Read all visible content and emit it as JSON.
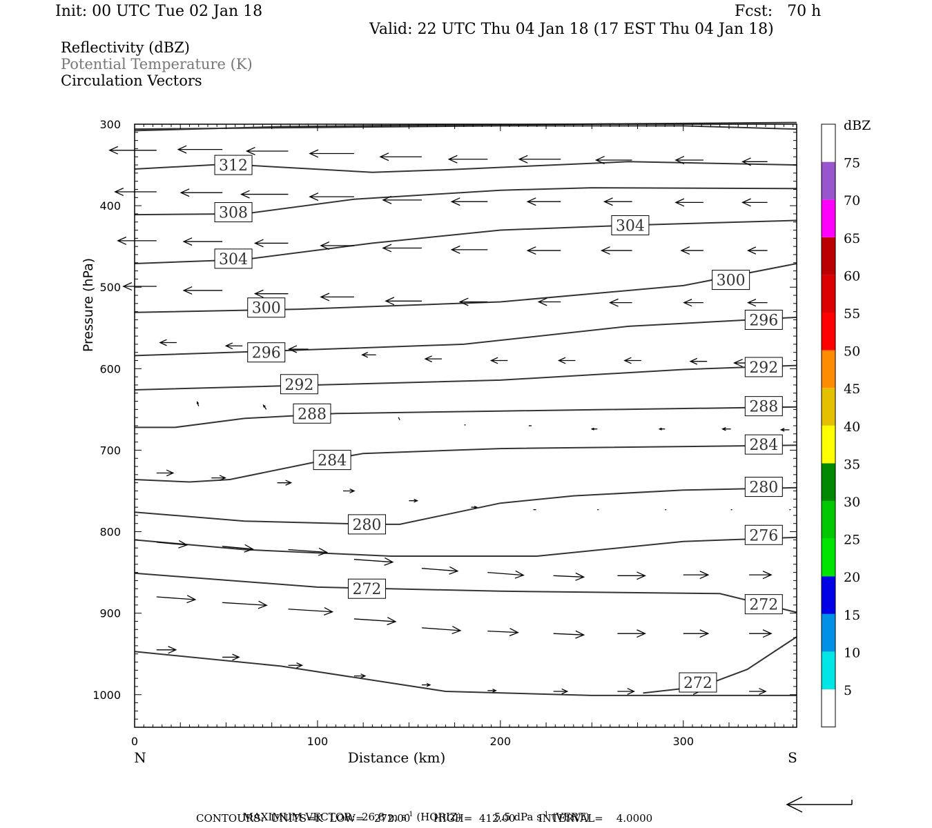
{
  "header": {
    "init": "Init: 00 UTC Tue 02 Jan 18",
    "fcst": "Fcst:   70 h",
    "valid": "Valid: 22 UTC Thu 04 Jan 18 (17 EST Thu 04 Jan 18)"
  },
  "legend_lines": {
    "reflectivity": "Reflectivity (dBZ)",
    "theta": "Potential Temperature (K)",
    "vectors": "Circulation Vectors"
  },
  "footer": {
    "maxvec_label": "MAXIMUM VECTOR:",
    "maxvec_horiz": "26.8 m s",
    "maxvec_horiz_exp": "-1",
    "maxvec_horiz_tag": "(HORIZ)",
    "maxvec_vert": "5.5 dPa s",
    "maxvec_vert_exp": "-1",
    "maxvec_vert_tag": "(VERT)",
    "contours": "CONTOURS:  UNITS=K  LOW=   272.00       HIGH=  412.00       INTERVAL=    4.0000"
  },
  "colorbar": {
    "title": "dBZ",
    "labels": [
      "5",
      "10",
      "15",
      "20",
      "25",
      "30",
      "35",
      "40",
      "45",
      "50",
      "55",
      "60",
      "65",
      "70",
      "75"
    ],
    "colors": [
      "#ffffff",
      "#00e5e5",
      "#0090e5",
      "#0000e5",
      "#00e500",
      "#00c800",
      "#008800",
      "#ffff00",
      "#e5c000",
      "#ff8c00",
      "#ff0000",
      "#dd0000",
      "#bb0000",
      "#ff00ff",
      "#9955cc",
      "#ffffff"
    ]
  },
  "chart_data": {
    "type": "contour",
    "xlabel": "Distance (km)",
    "ylabel": "Pressure (hPa)",
    "xlim": [
      0,
      362
    ],
    "ylim": [
      300,
      1040
    ],
    "y_inverted": true,
    "xticks": [
      0,
      100,
      200,
      300
    ],
    "xtick_labels": [
      "0",
      "100",
      "200",
      "300"
    ],
    "yticks": [
      300,
      400,
      500,
      600,
      700,
      800,
      900,
      1000
    ],
    "ytick_labels": [
      "300",
      "400",
      "500",
      "600",
      "700",
      "800",
      "900",
      "1000"
    ],
    "end_labels": {
      "left": "N",
      "right": "S"
    },
    "theta_contours": [
      {
        "points": [
          [
            0,
            306
          ],
          [
            100,
            304
          ],
          [
            200,
            302
          ],
          [
            300,
            302
          ],
          [
            362,
            306
          ]
        ]
      },
      {
        "points": [
          [
            0,
            308
          ],
          [
            80,
            303
          ],
          [
            170,
            301
          ],
          [
            240,
            300
          ],
          [
            362,
            298
          ]
        ]
      },
      {
        "points": [
          [
            0,
            355
          ],
          [
            50,
            349
          ],
          [
            130,
            359
          ],
          [
            170,
            356
          ],
          [
            270,
            346
          ],
          [
            362,
            350
          ]
        ]
      },
      {
        "points": [
          [
            0,
            411
          ],
          [
            60,
            410
          ],
          [
            120,
            392
          ],
          [
            200,
            381
          ],
          [
            250,
            378
          ],
          [
            362,
            379
          ]
        ]
      },
      {
        "points": [
          [
            0,
            471
          ],
          [
            60,
            466
          ],
          [
            130,
            446
          ],
          [
            200,
            430
          ],
          [
            270,
            424
          ],
          [
            362,
            418
          ]
        ]
      },
      {
        "points": [
          [
            0,
            531
          ],
          [
            90,
            527
          ],
          [
            200,
            518
          ],
          [
            300,
            498
          ],
          [
            362,
            471
          ]
        ]
      },
      {
        "points": [
          [
            0,
            584
          ],
          [
            80,
            578
          ],
          [
            180,
            570
          ],
          [
            270,
            548
          ],
          [
            362,
            537
          ]
        ]
      },
      {
        "points": [
          [
            0,
            626
          ],
          [
            100,
            620
          ],
          [
            200,
            614
          ],
          [
            300,
            601
          ],
          [
            362,
            596
          ]
        ]
      },
      {
        "points": [
          [
            0,
            672
          ],
          [
            22,
            672
          ],
          [
            60,
            661
          ],
          [
            110,
            655
          ],
          [
            200,
            652
          ],
          [
            362,
            647
          ]
        ]
      },
      {
        "points": [
          [
            0,
            736
          ],
          [
            30,
            739
          ],
          [
            52,
            736
          ],
          [
            100,
            714
          ],
          [
            125,
            704
          ],
          [
            200,
            698
          ],
          [
            362,
            694
          ]
        ]
      },
      {
        "points": [
          [
            0,
            776
          ],
          [
            60,
            787
          ],
          [
            130,
            791
          ],
          [
            145,
            791
          ],
          [
            200,
            765
          ],
          [
            240,
            756
          ],
          [
            300,
            749
          ],
          [
            362,
            746
          ]
        ]
      },
      {
        "points": [
          [
            0,
            810
          ],
          [
            60,
            822
          ],
          [
            140,
            830
          ],
          [
            220,
            830
          ],
          [
            300,
            812
          ],
          [
            362,
            807
          ]
        ]
      },
      {
        "points": [
          [
            0,
            851
          ],
          [
            100,
            868
          ],
          [
            200,
            873
          ],
          [
            320,
            876
          ],
          [
            362,
            899
          ]
        ]
      },
      {
        "points": [
          [
            0,
            947
          ],
          [
            80,
            965
          ],
          [
            170,
            996
          ],
          [
            250,
            1001
          ],
          [
            362,
            1001
          ]
        ]
      },
      {
        "points": [
          [
            278,
            998
          ],
          [
            310,
            990
          ],
          [
            335,
            969
          ],
          [
            362,
            929
          ]
        ]
      }
    ],
    "theta_labels": [
      {
        "text": "312",
        "x": 54,
        "p": 350
      },
      {
        "text": "308",
        "x": 54,
        "p": 408
      },
      {
        "text": "304",
        "x": 54,
        "p": 465
      },
      {
        "text": "304",
        "x": 271,
        "p": 424
      },
      {
        "text": "300",
        "x": 72,
        "p": 525
      },
      {
        "text": "300",
        "x": 326,
        "p": 491
      },
      {
        "text": "296",
        "x": 72,
        "p": 580
      },
      {
        "text": "296",
        "x": 344,
        "p": 540
      },
      {
        "text": "292",
        "x": 90,
        "p": 619
      },
      {
        "text": "292",
        "x": 344,
        "p": 598
      },
      {
        "text": "288",
        "x": 97,
        "p": 655
      },
      {
        "text": "288",
        "x": 344,
        "p": 646
      },
      {
        "text": "284",
        "x": 108,
        "p": 712
      },
      {
        "text": "284",
        "x": 344,
        "p": 693
      },
      {
        "text": "280",
        "x": 127,
        "p": 791
      },
      {
        "text": "280",
        "x": 344,
        "p": 745
      },
      {
        "text": "276",
        "x": 344,
        "p": 804
      },
      {
        "text": "272",
        "x": 127,
        "p": 870
      },
      {
        "text": "272",
        "x": 344,
        "p": 889
      },
      {
        "text": "272",
        "x": 308,
        "p": 985
      }
    ],
    "vectors": [
      {
        "x": 12,
        "p": 332,
        "u": -34
      },
      {
        "x": 48,
        "p": 331,
        "u": -32
      },
      {
        "x": 84,
        "p": 333,
        "u": -30
      },
      {
        "x": 120,
        "p": 336,
        "u": -32
      },
      {
        "x": 157,
        "p": 340,
        "u": -30
      },
      {
        "x": 193,
        "p": 343,
        "u": -28
      },
      {
        "x": 233,
        "p": 343,
        "u": -30
      },
      {
        "x": 272,
        "p": 344,
        "u": -26
      },
      {
        "x": 311,
        "p": 344,
        "u": -20
      },
      {
        "x": 346,
        "p": 346,
        "u": -18
      },
      {
        "x": 12,
        "p": 383,
        "u": -30
      },
      {
        "x": 48,
        "p": 384,
        "u": -30
      },
      {
        "x": 84,
        "p": 386,
        "u": -34
      },
      {
        "x": 120,
        "p": 389,
        "u": -32
      },
      {
        "x": 157,
        "p": 393,
        "u": -28
      },
      {
        "x": 193,
        "p": 395,
        "u": -26
      },
      {
        "x": 233,
        "p": 395,
        "u": -24
      },
      {
        "x": 272,
        "p": 395,
        "u": -20
      },
      {
        "x": 311,
        "p": 396,
        "u": -20
      },
      {
        "x": 346,
        "p": 396,
        "u": -18
      },
      {
        "x": 12,
        "p": 443,
        "u": -28
      },
      {
        "x": 48,
        "p": 444,
        "u": -28
      },
      {
        "x": 84,
        "p": 446,
        "u": -24
      },
      {
        "x": 120,
        "p": 449,
        "u": -24
      },
      {
        "x": 157,
        "p": 452,
        "u": -28
      },
      {
        "x": 193,
        "p": 454,
        "u": -26
      },
      {
        "x": 233,
        "p": 455,
        "u": -24
      },
      {
        "x": 272,
        "p": 455,
        "u": -22
      },
      {
        "x": 311,
        "p": 455,
        "u": -16
      },
      {
        "x": 346,
        "p": 455,
        "u": -14
      },
      {
        "x": 12,
        "p": 499,
        "u": -24
      },
      {
        "x": 48,
        "p": 504,
        "u": -28
      },
      {
        "x": 84,
        "p": 508,
        "u": -24
      },
      {
        "x": 120,
        "p": 512,
        "u": -24
      },
      {
        "x": 157,
        "p": 517,
        "u": -26
      },
      {
        "x": 193,
        "p": 518,
        "u": -20
      },
      {
        "x": 233,
        "p": 518,
        "u": -16
      },
      {
        "x": 272,
        "p": 519,
        "u": -16
      },
      {
        "x": 311,
        "p": 519,
        "u": -14
      },
      {
        "x": 346,
        "p": 519,
        "u": -14
      },
      {
        "x": 23,
        "p": 568,
        "u": -12
      },
      {
        "x": 59,
        "p": 572,
        "u": -12
      },
      {
        "x": 95,
        "p": 576,
        "u": -14
      },
      {
        "x": 132,
        "p": 583,
        "u": -10
      },
      {
        "x": 168,
        "p": 588,
        "u": -12
      },
      {
        "x": 204,
        "p": 590,
        "u": -12
      },
      {
        "x": 241,
        "p": 590,
        "u": -12
      },
      {
        "x": 277,
        "p": 590,
        "u": -12
      },
      {
        "x": 313,
        "p": 591,
        "u": -12
      },
      {
        "x": 346,
        "p": 593,
        "u": -24
      },
      {
        "x": 35,
        "p": 646,
        "u": -1,
        "v": -6
      },
      {
        "x": 72,
        "p": 650,
        "u": -2,
        "v": -6
      },
      {
        "x": 145,
        "p": 663,
        "u": -1,
        "v": -4
      },
      {
        "x": 181,
        "p": 669,
        "u": -1
      },
      {
        "x": 217,
        "p": 670,
        "u": -2
      },
      {
        "x": 253,
        "p": 674,
        "u": -4
      },
      {
        "x": 290,
        "p": 674,
        "u": -4
      },
      {
        "x": 326,
        "p": 674,
        "u": -6
      },
      {
        "x": 358,
        "p": 675,
        "u": -6
      },
      {
        "x": 12,
        "p": 728,
        "u": 12
      },
      {
        "x": 42,
        "p": 734,
        "u": 10
      },
      {
        "x": 78,
        "p": 740,
        "u": 10
      },
      {
        "x": 114,
        "p": 750,
        "u": 8
      },
      {
        "x": 150,
        "p": 762,
        "u": 6
      },
      {
        "x": 184,
        "p": 770,
        "u": 4
      },
      {
        "x": 218,
        "p": 773,
        "u": 2
      },
      {
        "x": 253,
        "p": 773,
        "u": 1
      },
      {
        "x": 290,
        "p": 773,
        "u": 1
      },
      {
        "x": 326,
        "p": 773,
        "u": 1
      },
      {
        "x": 358,
        "p": 773,
        "u": 1
      },
      {
        "x": 12,
        "p": 813,
        "u": 22,
        "v": 4
      },
      {
        "x": 48,
        "p": 818,
        "u": 22,
        "v": 4
      },
      {
        "x": 84,
        "p": 822,
        "u": 28,
        "v": 4
      },
      {
        "x": 120,
        "p": 834,
        "u": 28,
        "v": 4
      },
      {
        "x": 157,
        "p": 845,
        "u": 26,
        "v": 4
      },
      {
        "x": 193,
        "p": 850,
        "u": 26,
        "v": 4
      },
      {
        "x": 229,
        "p": 854,
        "u": 22,
        "v": 2
      },
      {
        "x": 264,
        "p": 854,
        "u": 20
      },
      {
        "x": 300,
        "p": 853,
        "u": 18
      },
      {
        "x": 336,
        "p": 853,
        "u": 16
      },
      {
        "x": 12,
        "p": 880,
        "u": 28,
        "v": 4
      },
      {
        "x": 48,
        "p": 887,
        "u": 32,
        "v": 4
      },
      {
        "x": 84,
        "p": 895,
        "u": 32,
        "v": 4
      },
      {
        "x": 120,
        "p": 907,
        "u": 30,
        "v": 4
      },
      {
        "x": 157,
        "p": 918,
        "u": 28,
        "v": 4
      },
      {
        "x": 193,
        "p": 922,
        "u": 22,
        "v": 2
      },
      {
        "x": 229,
        "p": 925,
        "u": 22,
        "v": 2
      },
      {
        "x": 264,
        "p": 925,
        "u": 20
      },
      {
        "x": 300,
        "p": 925,
        "u": 18
      },
      {
        "x": 336,
        "p": 925,
        "u": 16
      },
      {
        "x": 12,
        "p": 945,
        "u": 14
      },
      {
        "x": 48,
        "p": 954,
        "u": 12
      },
      {
        "x": 84,
        "p": 964,
        "u": 10
      },
      {
        "x": 120,
        "p": 977,
        "u": 8
      },
      {
        "x": 157,
        "p": 988,
        "u": 6
      },
      {
        "x": 193,
        "p": 995,
        "u": 6
      },
      {
        "x": 229,
        "p": 996,
        "u": 10
      },
      {
        "x": 264,
        "p": 996,
        "u": 12
      },
      {
        "x": 300,
        "p": 996,
        "u": 12
      },
      {
        "x": 336,
        "p": 996,
        "u": 12
      }
    ]
  }
}
